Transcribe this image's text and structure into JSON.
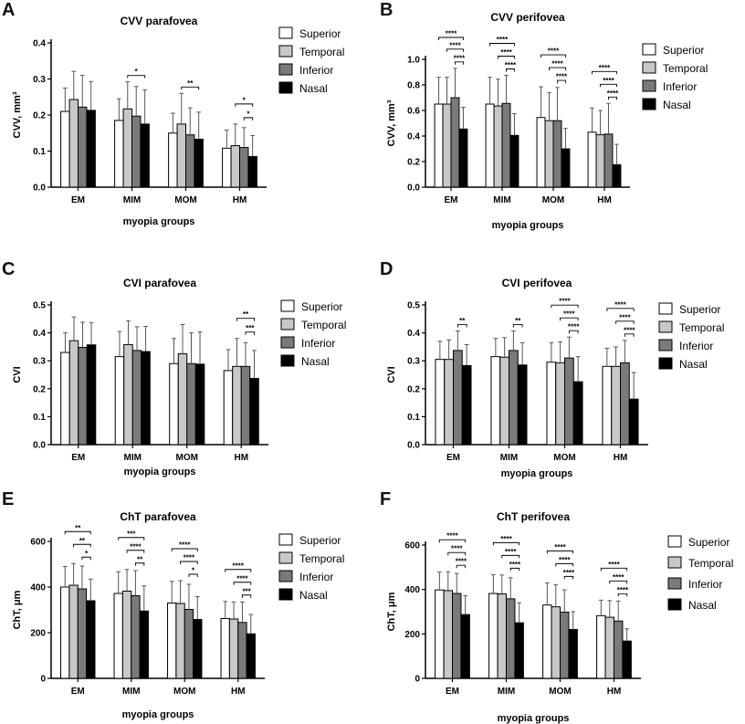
{
  "figure": {
    "panel_letters": [
      "A",
      "B",
      "C",
      "D",
      "E",
      "F"
    ],
    "legend_labels": [
      "Superior",
      "Temporal",
      "Inferior",
      "Nasal"
    ],
    "colors": {
      "Superior": "#ffffff",
      "Temporal": "#c8c8c8",
      "Inferior": "#7a7a7a",
      "Nasal": "#000000"
    }
  },
  "chart_data": [
    {
      "id": "A",
      "type": "bar",
      "title": "CVV parafovea",
      "xlabel": "myopia groups",
      "ylabel": "CVV, mm³",
      "categories": [
        "EM",
        "MIM",
        "MOM",
        "HM"
      ],
      "ylim": [
        0,
        0.4
      ],
      "yticks": [
        0.0,
        0.1,
        0.2,
        0.3,
        0.4
      ],
      "ytick_labels": [
        "0.0",
        "0.1",
        "0.2",
        "0.3",
        "0.4"
      ],
      "series": [
        {
          "name": "Superior",
          "values": [
            0.21,
            0.185,
            0.15,
            0.108
          ],
          "errors": [
            0.065,
            0.06,
            0.055,
            0.05
          ]
        },
        {
          "name": "Temporal",
          "values": [
            0.243,
            0.217,
            0.175,
            0.115
          ],
          "errors": [
            0.078,
            0.075,
            0.085,
            0.06
          ]
        },
        {
          "name": "Inferior",
          "values": [
            0.222,
            0.197,
            0.145,
            0.11
          ],
          "errors": [
            0.088,
            0.082,
            0.075,
            0.055
          ]
        },
        {
          "name": "Nasal",
          "values": [
            0.213,
            0.175,
            0.133,
            0.085
          ],
          "errors": [
            0.08,
            0.095,
            0.075,
            0.058
          ]
        }
      ],
      "significance": [
        {
          "group": 1,
          "from": 1,
          "to": 3,
          "label": "*"
        },
        {
          "group": 2,
          "from": 1,
          "to": 3,
          "label": "**"
        },
        {
          "group": 3,
          "from": 1,
          "to": 3,
          "label": "*"
        },
        {
          "group": 3,
          "from": 2,
          "to": 3,
          "label": "*"
        }
      ]
    },
    {
      "id": "B",
      "type": "bar",
      "title": "CVV perifovea",
      "xlabel": "myopia groups",
      "ylabel": "CVV, mm³",
      "categories": [
        "EM",
        "MIM",
        "MOM",
        "HM"
      ],
      "ylim": [
        0,
        1.0
      ],
      "yticks": [
        0,
        0.2,
        0.4,
        0.6,
        0.8,
        1.0
      ],
      "ytick_labels": [
        "0.0",
        "0.2",
        "0.4",
        "0.6",
        "0.8",
        "1.0"
      ],
      "series": [
        {
          "name": "Superior",
          "values": [
            0.65,
            0.65,
            0.545,
            0.43
          ],
          "errors": [
            0.21,
            0.21,
            0.24,
            0.19
          ]
        },
        {
          "name": "Temporal",
          "values": [
            0.65,
            0.635,
            0.52,
            0.41
          ],
          "errors": [
            0.21,
            0.21,
            0.22,
            0.19
          ]
        },
        {
          "name": "Inferior",
          "values": [
            0.7,
            0.655,
            0.52,
            0.415
          ],
          "errors": [
            0.23,
            0.22,
            0.26,
            0.24
          ]
        },
        {
          "name": "Nasal",
          "values": [
            0.455,
            0.405,
            0.3,
            0.175
          ],
          "errors": [
            0.17,
            0.17,
            0.16,
            0.16
          ]
        }
      ],
      "significance": [
        {
          "group": 0,
          "from": 0,
          "to": 3,
          "label": "****"
        },
        {
          "group": 0,
          "from": 1,
          "to": 3,
          "label": "****"
        },
        {
          "group": 0,
          "from": 2,
          "to": 3,
          "label": "****"
        },
        {
          "group": 1,
          "from": 0,
          "to": 3,
          "label": "****"
        },
        {
          "group": 1,
          "from": 1,
          "to": 3,
          "label": "****"
        },
        {
          "group": 1,
          "from": 2,
          "to": 3,
          "label": "****"
        },
        {
          "group": 2,
          "from": 0,
          "to": 3,
          "label": "****"
        },
        {
          "group": 2,
          "from": 1,
          "to": 3,
          "label": "****"
        },
        {
          "group": 2,
          "from": 2,
          "to": 3,
          "label": "****"
        },
        {
          "group": 3,
          "from": 0,
          "to": 3,
          "label": "****"
        },
        {
          "group": 3,
          "from": 1,
          "to": 3,
          "label": "****"
        },
        {
          "group": 3,
          "from": 2,
          "to": 3,
          "label": "****"
        }
      ]
    },
    {
      "id": "C",
      "type": "bar",
      "title": "CVI parafovea",
      "xlabel": "myopia groups",
      "ylabel": "CVI",
      "categories": [
        "EM",
        "MIM",
        "MOM",
        "HM"
      ],
      "ylim": [
        0,
        0.5
      ],
      "yticks": [
        0,
        0.1,
        0.2,
        0.3,
        0.4,
        0.5
      ],
      "ytick_labels": [
        "0.0",
        "0.1",
        "0.2",
        "0.3",
        "0.4",
        "0.5"
      ],
      "series": [
        {
          "name": "Superior",
          "values": [
            0.33,
            0.315,
            0.29,
            0.265
          ],
          "errors": [
            0.07,
            0.09,
            0.09,
            0.075
          ]
        },
        {
          "name": "Temporal",
          "values": [
            0.372,
            0.358,
            0.325,
            0.28
          ],
          "errors": [
            0.085,
            0.085,
            0.105,
            0.1
          ]
        },
        {
          "name": "Inferior",
          "values": [
            0.348,
            0.337,
            0.29,
            0.28
          ],
          "errors": [
            0.09,
            0.085,
            0.11,
            0.085
          ]
        },
        {
          "name": "Nasal",
          "values": [
            0.357,
            0.333,
            0.288,
            0.237
          ],
          "errors": [
            0.08,
            0.09,
            0.115,
            0.1
          ]
        }
      ],
      "significance": [
        {
          "group": 3,
          "from": 1,
          "to": 3,
          "label": "**"
        },
        {
          "group": 3,
          "from": 2,
          "to": 3,
          "label": "***"
        }
      ]
    },
    {
      "id": "D",
      "type": "bar",
      "title": "CVI perifovea",
      "xlabel": "myopia groups",
      "ylabel": "CVI",
      "categories": [
        "EM",
        "MIM",
        "MOM",
        "HM"
      ],
      "ylim": [
        0,
        0.5
      ],
      "yticks": [
        0,
        0.1,
        0.2,
        0.3,
        0.4,
        0.5
      ],
      "ytick_labels": [
        "0.0",
        "0.1",
        "0.2",
        "0.3",
        "0.4",
        "0.5"
      ],
      "series": [
        {
          "name": "Superior",
          "values": [
            0.305,
            0.315,
            0.295,
            0.28
          ],
          "errors": [
            0.065,
            0.065,
            0.07,
            0.065
          ]
        },
        {
          "name": "Temporal",
          "values": [
            0.305,
            0.313,
            0.293,
            0.28
          ],
          "errors": [
            0.07,
            0.07,
            0.075,
            0.07
          ]
        },
        {
          "name": "Inferior",
          "values": [
            0.337,
            0.337,
            0.31,
            0.293
          ],
          "errors": [
            0.07,
            0.07,
            0.075,
            0.08
          ]
        },
        {
          "name": "Nasal",
          "values": [
            0.283,
            0.285,
            0.225,
            0.163
          ],
          "errors": [
            0.075,
            0.08,
            0.09,
            0.095
          ]
        }
      ],
      "significance": [
        {
          "group": 0,
          "from": 2,
          "to": 3,
          "label": "**"
        },
        {
          "group": 1,
          "from": 2,
          "to": 3,
          "label": "**"
        },
        {
          "group": 2,
          "from": 0,
          "to": 3,
          "label": "****"
        },
        {
          "group": 2,
          "from": 1,
          "to": 3,
          "label": "****"
        },
        {
          "group": 2,
          "from": 2,
          "to": 3,
          "label": "****"
        },
        {
          "group": 3,
          "from": 0,
          "to": 3,
          "label": "****"
        },
        {
          "group": 3,
          "from": 1,
          "to": 3,
          "label": "****"
        },
        {
          "group": 3,
          "from": 2,
          "to": 3,
          "label": "****"
        }
      ]
    },
    {
      "id": "E",
      "type": "bar",
      "title": "ChT parafovea",
      "xlabel": "myopia groups",
      "ylabel": "ChT, μm",
      "categories": [
        "EM",
        "MIM",
        "MOM",
        "HM"
      ],
      "ylim": [
        0,
        600
      ],
      "yticks": [
        0,
        200,
        400,
        600
      ],
      "ytick_labels": [
        "0",
        "200",
        "400",
        "600"
      ],
      "series": [
        {
          "name": "Superior",
          "values": [
            400,
            372,
            330,
            262
          ],
          "errors": [
            90,
            95,
            95,
            75
          ]
        },
        {
          "name": "Temporal",
          "values": [
            408,
            382,
            328,
            260
          ],
          "errors": [
            95,
            95,
            100,
            75
          ]
        },
        {
          "name": "Inferior",
          "values": [
            392,
            362,
            302,
            245
          ],
          "errors": [
            100,
            110,
            110,
            90
          ]
        },
        {
          "name": "Nasal",
          "values": [
            340,
            295,
            258,
            195
          ],
          "errors": [
            95,
            110,
            100,
            85
          ]
        }
      ],
      "significance": [
        {
          "group": 0,
          "from": 0,
          "to": 3,
          "label": "**"
        },
        {
          "group": 0,
          "from": 1,
          "to": 3,
          "label": "**"
        },
        {
          "group": 0,
          "from": 2,
          "to": 3,
          "label": "*"
        },
        {
          "group": 1,
          "from": 0,
          "to": 3,
          "label": "***"
        },
        {
          "group": 1,
          "from": 1,
          "to": 3,
          "label": "****"
        },
        {
          "group": 1,
          "from": 2,
          "to": 3,
          "label": "**"
        },
        {
          "group": 2,
          "from": 0,
          "to": 3,
          "label": "****"
        },
        {
          "group": 2,
          "from": 1,
          "to": 3,
          "label": "****"
        },
        {
          "group": 2,
          "from": 2,
          "to": 3,
          "label": "*"
        },
        {
          "group": 3,
          "from": 0,
          "to": 3,
          "label": "****"
        },
        {
          "group": 3,
          "from": 1,
          "to": 3,
          "label": "****"
        },
        {
          "group": 3,
          "from": 2,
          "to": 3,
          "label": "***"
        }
      ]
    },
    {
      "id": "F",
      "type": "bar",
      "title": "ChT perifovea",
      "xlabel": "myopia groups",
      "ylabel": "ChT, μm",
      "categories": [
        "EM",
        "MIM",
        "MOM",
        "HM"
      ],
      "ylim": [
        0,
        600
      ],
      "yticks": [
        0,
        200,
        400,
        600
      ],
      "ytick_labels": [
        "0",
        "200",
        "400",
        "600"
      ],
      "series": [
        {
          "name": "Superior",
          "values": [
            398,
            382,
            330,
            282
          ],
          "errors": [
            80,
            85,
            100,
            70
          ]
        },
        {
          "name": "Temporal",
          "values": [
            395,
            380,
            322,
            275
          ],
          "errors": [
            85,
            85,
            100,
            75
          ]
        },
        {
          "name": "Inferior",
          "values": [
            382,
            358,
            298,
            258
          ],
          "errors": [
            90,
            95,
            100,
            90
          ]
        },
        {
          "name": "Nasal",
          "values": [
            287,
            250,
            220,
            168
          ],
          "errors": [
            85,
            90,
            80,
            55
          ]
        }
      ],
      "significance": [
        {
          "group": 0,
          "from": 0,
          "to": 3,
          "label": "****"
        },
        {
          "group": 0,
          "from": 1,
          "to": 3,
          "label": "****"
        },
        {
          "group": 0,
          "from": 2,
          "to": 3,
          "label": "****"
        },
        {
          "group": 1,
          "from": 0,
          "to": 3,
          "label": "****"
        },
        {
          "group": 1,
          "from": 1,
          "to": 3,
          "label": "****"
        },
        {
          "group": 1,
          "from": 2,
          "to": 3,
          "label": "****"
        },
        {
          "group": 2,
          "from": 0,
          "to": 3,
          "label": "****"
        },
        {
          "group": 2,
          "from": 1,
          "to": 3,
          "label": "****"
        },
        {
          "group": 2,
          "from": 2,
          "to": 3,
          "label": "****"
        },
        {
          "group": 3,
          "from": 0,
          "to": 3,
          "label": "****"
        },
        {
          "group": 3,
          "from": 1,
          "to": 3,
          "label": "****"
        },
        {
          "group": 3,
          "from": 2,
          "to": 3,
          "label": "****"
        }
      ]
    }
  ]
}
